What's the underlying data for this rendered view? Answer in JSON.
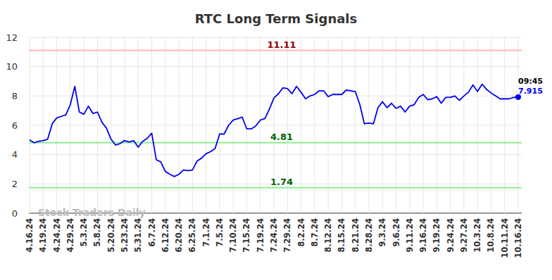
{
  "chart_data": {
    "type": "line",
    "title": "RTC Long Term Signals",
    "color": "#0000ee",
    "categories": [
      "4.16.24",
      null,
      null,
      "4.19.24",
      null,
      null,
      "4.24.24",
      null,
      null,
      "4.29.24",
      null,
      null,
      "5.3.24",
      null,
      null,
      "5.8.24",
      null,
      null,
      "5.20.24",
      null,
      null,
      "5.23.24",
      null,
      null,
      "5.31.24",
      null,
      null,
      "6.7.24",
      null,
      null,
      "6.12.24",
      null,
      null,
      "6.20.24",
      null,
      null,
      "6.25.24",
      null,
      null,
      "7.1.24",
      null,
      null,
      "7.5.24",
      null,
      null,
      "7.10.24",
      null,
      null,
      "7.15.24",
      null,
      null,
      "7.19.24",
      null,
      null,
      "7.24.24",
      null,
      null,
      "7.29.24",
      null,
      null,
      "8.2.24",
      null,
      null,
      "8.7.24",
      null,
      null,
      "8.12.24",
      null,
      null,
      "8.15.24",
      null,
      null,
      "8.21.24",
      null,
      null,
      "8.28.24",
      null,
      null,
      "9.3.24",
      null,
      null,
      "9.6.24",
      null,
      null,
      "9.11.24",
      null,
      null,
      "9.16.24",
      null,
      null,
      "9.19.24",
      null,
      null,
      "9.24.24",
      null,
      null,
      "9.27.24",
      null,
      null,
      "10.3.24",
      null,
      null,
      "10.8.24",
      null,
      null,
      "10.11.24",
      null,
      null,
      "10.16.24"
    ],
    "values": [
      5.0,
      4.8,
      4.9,
      4.95,
      5.05,
      6.1,
      6.5,
      6.6,
      6.7,
      7.4,
      8.65,
      6.9,
      6.75,
      7.3,
      6.8,
      6.9,
      6.2,
      5.8,
      5.05,
      4.65,
      4.75,
      4.95,
      4.85,
      4.95,
      4.5,
      4.9,
      5.1,
      5.45,
      3.65,
      3.5,
      2.85,
      2.65,
      2.5,
      2.65,
      2.95,
      2.9,
      2.95,
      3.55,
      3.75,
      4.05,
      4.2,
      4.4,
      5.4,
      5.4,
      6.0,
      6.35,
      6.45,
      6.55,
      5.75,
      5.75,
      5.95,
      6.35,
      6.45,
      7.1,
      7.85,
      8.15,
      8.55,
      8.5,
      8.15,
      8.65,
      8.25,
      7.8,
      8.0,
      8.1,
      8.35,
      8.35,
      7.95,
      8.1,
      8.1,
      8.1,
      8.4,
      8.35,
      8.3,
      7.4,
      6.1,
      6.15,
      6.1,
      7.2,
      7.6,
      7.2,
      7.5,
      7.15,
      7.3,
      6.9,
      7.3,
      7.4,
      7.9,
      8.1,
      7.75,
      7.8,
      7.95,
      7.5,
      7.9,
      7.9,
      8.0,
      7.7,
      8.0,
      8.25,
      8.75,
      8.3,
      8.8,
      8.45,
      8.2,
      8.0,
      7.8,
      7.8,
      7.8,
      7.9,
      7.915
    ],
    "ylim": [
      0,
      12
    ],
    "yticks": [
      0,
      2,
      4,
      6,
      8,
      10,
      12
    ],
    "grid": true,
    "reference_lines": [
      {
        "value": 11.11,
        "label": "11.11",
        "color": "#ffb3b3",
        "label_color": "#8b0000"
      },
      {
        "value": 4.81,
        "label": "4.81",
        "color": "#90ee90",
        "label_color": "#006400"
      },
      {
        "value": 1.74,
        "label": "1.74",
        "color": "#90ee90",
        "label_color": "#006400"
      }
    ],
    "last_point": {
      "time_label": "09:45",
      "value_label": "7.915",
      "color": "#0000ee"
    },
    "watermark": "Stock Traders Daily"
  }
}
